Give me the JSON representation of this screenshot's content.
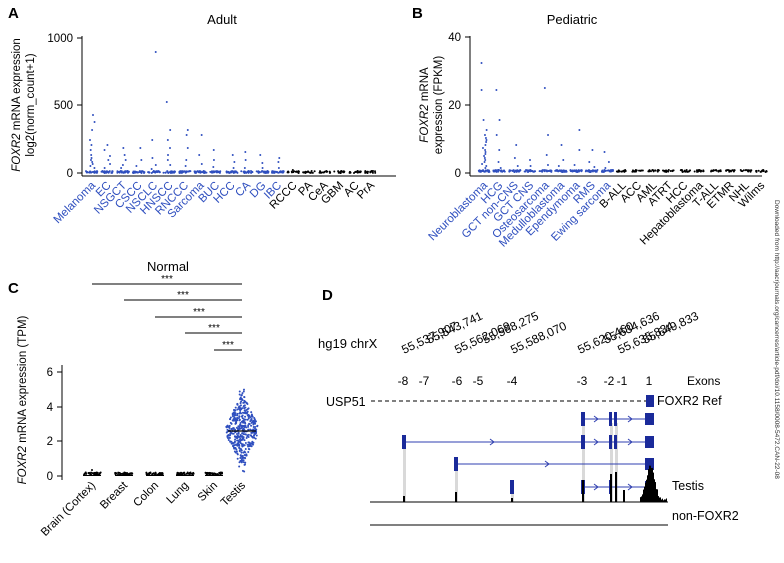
{
  "panelA": {
    "letter": "A",
    "title": "Adult",
    "ylabel_italic": "FOXR2",
    "ylabel_rest": " mRNA expression",
    "ylabel_line2": "log2(norm_count+1)",
    "yticks": [
      "0",
      "500",
      "1000"
    ],
    "categories": [
      {
        "name": "Melanoma",
        "blue": true
      },
      {
        "name": "EC",
        "blue": true
      },
      {
        "name": "NSGCT",
        "blue": true
      },
      {
        "name": "CSCC",
        "blue": true
      },
      {
        "name": "NSCLC",
        "blue": true
      },
      {
        "name": "HNSCC",
        "blue": true
      },
      {
        "name": "RNCCC",
        "blue": true
      },
      {
        "name": "Sarcoma",
        "blue": true
      },
      {
        "name": "BUC",
        "blue": true
      },
      {
        "name": "HCC",
        "blue": true
      },
      {
        "name": "CA",
        "blue": true
      },
      {
        "name": "DG",
        "blue": true
      },
      {
        "name": "IBC",
        "blue": true
      },
      {
        "name": "RCCC",
        "blue": false
      },
      {
        "name": "PA",
        "blue": false
      },
      {
        "name": "CeA",
        "blue": false
      },
      {
        "name": "GBM",
        "blue": false
      },
      {
        "name": "AC",
        "blue": false
      },
      {
        "name": "PrA",
        "blue": false
      }
    ]
  },
  "panelB": {
    "letter": "B",
    "title": "Pediatric",
    "ylabel_italic": "FOXR2",
    "ylabel_rest": " mRNA",
    "ylabel_line2": "expression (FPKM)",
    "yticks": [
      "0",
      "20",
      "40"
    ],
    "categories": [
      {
        "name": "Neuroblastoma",
        "blue": true
      },
      {
        "name": "HCG",
        "blue": true
      },
      {
        "name": "GCT non-CNS",
        "blue": true
      },
      {
        "name": "GCT CNS",
        "blue": true
      },
      {
        "name": "Osteosarcoma",
        "blue": true
      },
      {
        "name": "Medulloblastoma",
        "blue": true
      },
      {
        "name": "Ependymoma",
        "blue": true
      },
      {
        "name": "RMS",
        "blue": true
      },
      {
        "name": "Ewing sarcoma",
        "blue": true
      },
      {
        "name": "B-ALL",
        "blue": false
      },
      {
        "name": "ACC",
        "blue": false
      },
      {
        "name": "AML",
        "blue": false
      },
      {
        "name": "ATRT",
        "blue": false
      },
      {
        "name": "HCC",
        "blue": false
      },
      {
        "name": "Hepatoblastoma",
        "blue": false
      },
      {
        "name": "T-ALL",
        "blue": false
      },
      {
        "name": "ETMR",
        "blue": false
      },
      {
        "name": "NHL",
        "blue": false
      },
      {
        "name": "Wilms",
        "blue": false
      }
    ]
  },
  "panelC": {
    "letter": "C",
    "title": "Normal",
    "ylabel_italic": "FOXR2",
    "ylabel_rest": " mRNA expression (TPM)",
    "yticks": [
      "0",
      "2",
      "4",
      "6"
    ],
    "categories": [
      "Brain (Cortex)",
      "Breast",
      "Colon",
      "Lung",
      "Skin",
      "Testis"
    ],
    "significance": [
      "***",
      "***",
      "***",
      "***",
      "***"
    ]
  },
  "panelD": {
    "letter": "D",
    "chrom_label": "hg19 chrX",
    "coordinates": [
      "55,537,907",
      "55,543,741",
      "55,562,069",
      "55,568,275",
      "55,588,070",
      "55,620,460",
      "55,634,636",
      "55,635,834",
      "55,649,833"
    ],
    "exons": [
      "-8",
      "-7",
      "-6",
      "-5",
      "-4",
      "-3",
      "-2",
      "-1",
      "1"
    ],
    "exons_label": "Exons",
    "gene_left": "USP51",
    "gene_right": "FOXR2 Ref",
    "track1": "Testis",
    "track2": "non-FOXR2"
  },
  "side_note": "Downloaded from http://aacrjournals.org/cancerres/article-pdf/doi/10.1158/0008-5472.CAN-22-08",
  "colors": {
    "blue": "#2f4fbf",
    "dark_blue": "#1a2a9a"
  }
}
